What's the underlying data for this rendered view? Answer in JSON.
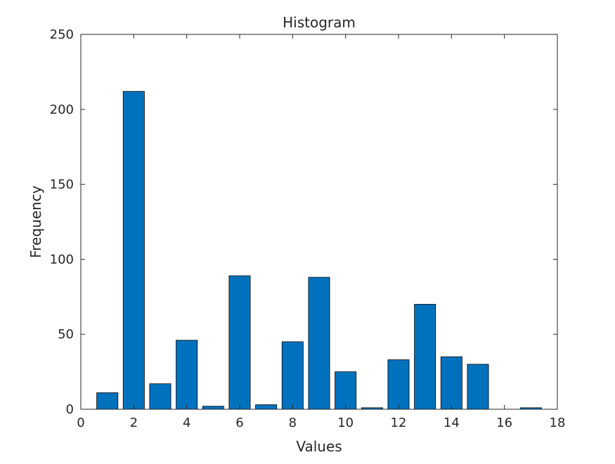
{
  "chart_data": {
    "type": "bar",
    "title": "Histogram",
    "xlabel": "Values",
    "ylabel": "Frequency",
    "xlim": [
      0,
      18
    ],
    "ylim": [
      0,
      250
    ],
    "xticks": [
      0,
      2,
      4,
      6,
      8,
      10,
      12,
      14,
      16,
      18
    ],
    "yticks": [
      0,
      50,
      100,
      150,
      200,
      250
    ],
    "x": [
      1,
      2,
      3,
      4,
      5,
      6,
      7,
      8,
      9,
      10,
      11,
      12,
      13,
      14,
      15,
      16,
      17
    ],
    "values": [
      11,
      212,
      17,
      46,
      2,
      89,
      3,
      45,
      88,
      25,
      1,
      33,
      70,
      35,
      30,
      0,
      1
    ],
    "bar_color": "#0072BD",
    "edge_color": "#000000",
    "axis_color": "#262626",
    "grid": false,
    "legend": false
  }
}
